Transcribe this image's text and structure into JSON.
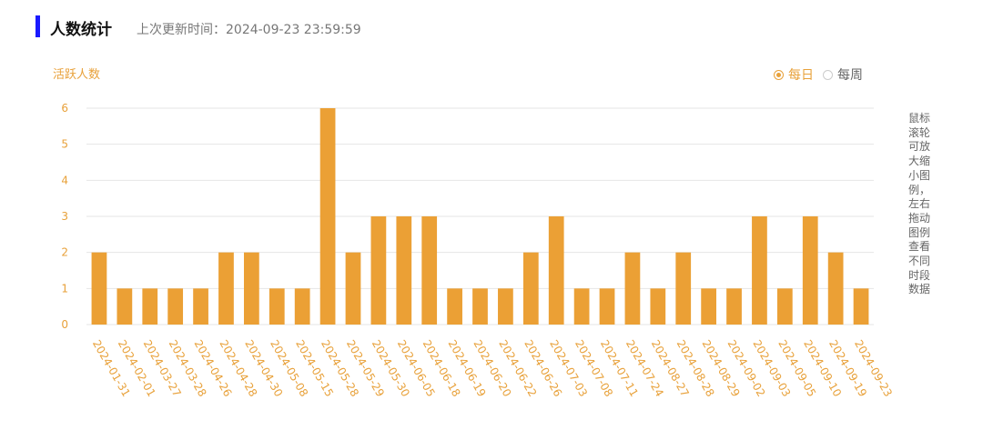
{
  "header": {
    "title": "人数统计",
    "update_time": "上次更新时间：2024-09-23 23:59:59"
  },
  "controls": {
    "options": [
      {
        "label": "每日",
        "selected": true
      },
      {
        "label": "每周",
        "selected": false
      }
    ],
    "hint": "鼠标滚轮可放大缩小图例，左右拖动图例查看不同时段数据"
  },
  "chart_data": {
    "type": "bar",
    "y_axis_title": "活跃人数",
    "categories": [
      "2024-01-31",
      "2024-02-01",
      "2024-03-27",
      "2024-03-28",
      "2024-04-26",
      "2024-04-28",
      "2024-04-30",
      "2024-05-08",
      "2024-05-15",
      "2024-05-28",
      "2024-05-29",
      "2024-05-30",
      "2024-06-05",
      "2024-06-18",
      "2024-06-19",
      "2024-06-20",
      "2024-06-22",
      "2024-06-26",
      "2024-07-03",
      "2024-07-08",
      "2024-07-11",
      "2024-07-24",
      "2024-08-27",
      "2024-08-28",
      "2024-08-29",
      "2024-09-02",
      "2024-09-03",
      "2024-09-05",
      "2024-09-10",
      "2024-09-19",
      "2024-09-23"
    ],
    "values": [
      2,
      1,
      1,
      1,
      1,
      2,
      2,
      1,
      1,
      6,
      2,
      3,
      3,
      3,
      1,
      1,
      1,
      2,
      3,
      1,
      1,
      2,
      1,
      2,
      1,
      1,
      3,
      1,
      3,
      2,
      1
    ],
    "color": "#eba035",
    "ylim": [
      0,
      6
    ],
    "yticks": [
      0,
      1,
      2,
      3,
      4,
      5,
      6
    ],
    "grid": true
  }
}
